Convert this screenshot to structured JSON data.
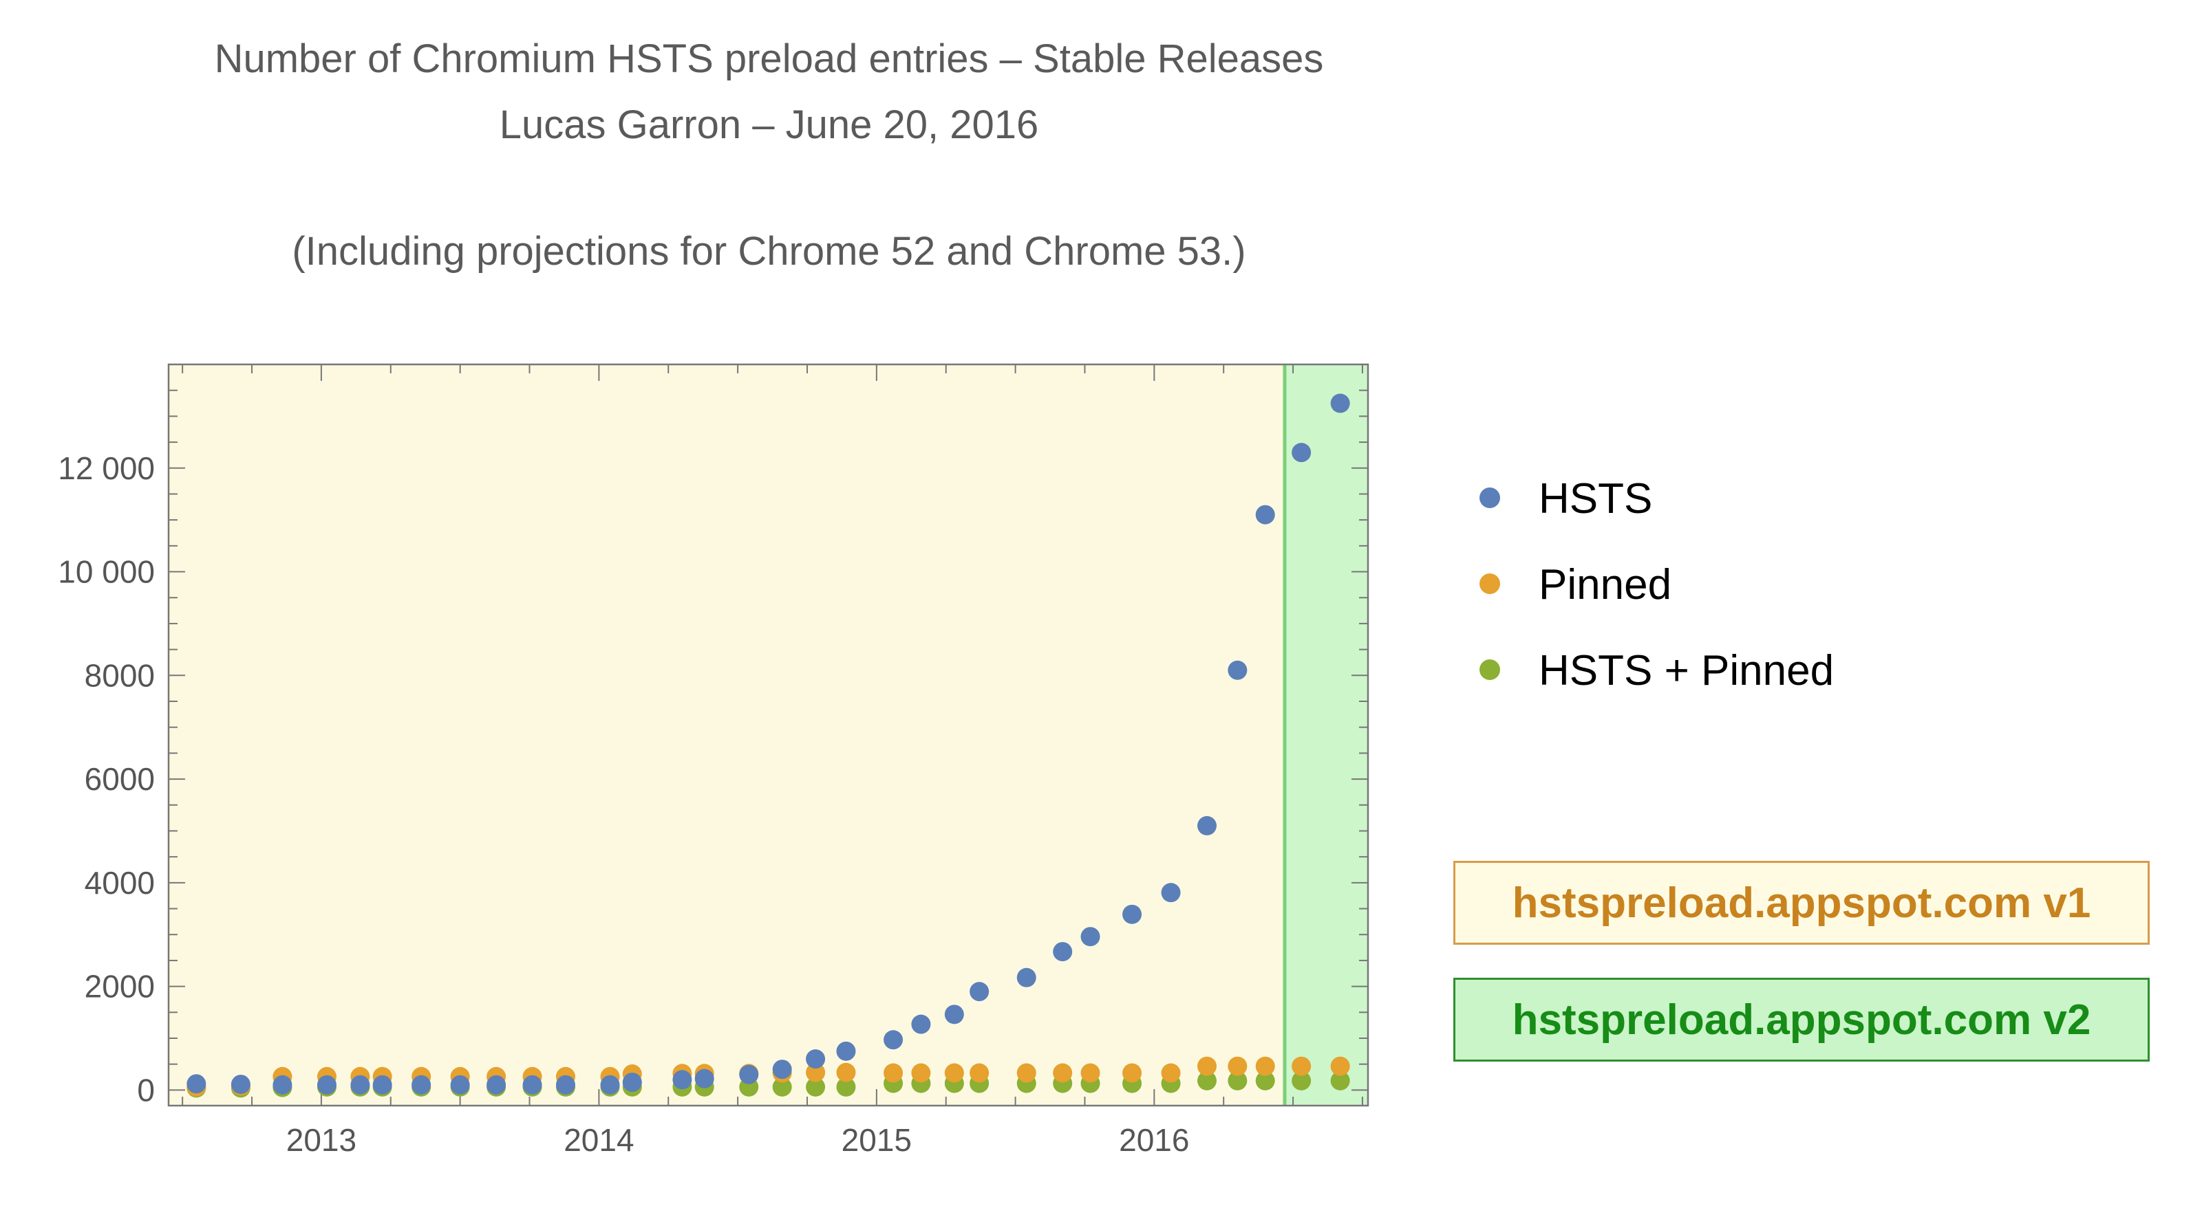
{
  "colors": {
    "hsts": "#5b7fb8",
    "pinned": "#e6a12e",
    "both": "#8bb033",
    "v1_background": "#fdf9e1",
    "v2_background": "#cdf6cb",
    "v2_boundary": "#7ccf7a",
    "v1_text": "#c8831f",
    "v1_border": "#d99a4a",
    "v1_fill": "#fffbe3",
    "v2_text": "#178c17",
    "v2_border": "#2f8f2f",
    "v2_fill": "#c9f5c8"
  },
  "chart_data": {
    "type": "scatter",
    "title": "Number of Chromium HSTS preload entries – Stable Releases",
    "subtitle": "Lucas Garron – June 20, 2016",
    "note": "(Including projections for Chrome 52 and Chrome 53.)",
    "xlabel": "",
    "ylabel": "",
    "xlim": [
      2012.45,
      2016.77
    ],
    "ylim": [
      -300,
      14000
    ],
    "x_ticks": [
      2013,
      2014,
      2015,
      2016
    ],
    "x_tick_labels": [
      "2013",
      "2014",
      "2015",
      "2016"
    ],
    "y_ticks": [
      0,
      2000,
      4000,
      6000,
      8000,
      10000,
      12000
    ],
    "y_tick_labels": [
      "0",
      "2000",
      "4000",
      "6000",
      "8000",
      "10 000",
      "12 000"
    ],
    "regions": [
      {
        "label": "hstspreload.appspot.com v1",
        "x_range": [
          2012.45,
          2016.47
        ]
      },
      {
        "label": "hstspreload.appspot.com v2",
        "x_range": [
          2016.47,
          2016.77
        ]
      }
    ],
    "grid": false,
    "legend_position": "right",
    "series": [
      {
        "name": "HSTS",
        "points": [
          [
            2012.55,
            120
          ],
          [
            2012.71,
            110
          ],
          [
            2012.86,
            100
          ],
          [
            2013.02,
            100
          ],
          [
            2013.14,
            100
          ],
          [
            2013.22,
            100
          ],
          [
            2013.36,
            100
          ],
          [
            2013.5,
            100
          ],
          [
            2013.63,
            100
          ],
          [
            2013.76,
            100
          ],
          [
            2013.88,
            100
          ],
          [
            2014.04,
            100
          ],
          [
            2014.12,
            150
          ],
          [
            2014.3,
            200
          ],
          [
            2014.38,
            220
          ],
          [
            2014.54,
            300
          ],
          [
            2014.66,
            400
          ],
          [
            2014.78,
            600
          ],
          [
            2014.89,
            750
          ],
          [
            2015.06,
            970
          ],
          [
            2015.16,
            1270
          ],
          [
            2015.28,
            1460
          ],
          [
            2015.37,
            1900
          ],
          [
            2015.54,
            2170
          ],
          [
            2015.67,
            2670
          ],
          [
            2015.77,
            2960
          ],
          [
            2015.92,
            3390
          ],
          [
            2016.06,
            3810
          ],
          [
            2016.19,
            5100
          ],
          [
            2016.3,
            8100
          ],
          [
            2016.4,
            11100
          ],
          [
            2016.53,
            12300
          ],
          [
            2016.67,
            13250
          ]
        ]
      },
      {
        "name": "Pinned",
        "points": [
          [
            2012.55,
            60
          ],
          [
            2012.71,
            80
          ],
          [
            2012.86,
            260
          ],
          [
            2013.02,
            260
          ],
          [
            2013.14,
            260
          ],
          [
            2013.22,
            260
          ],
          [
            2013.36,
            260
          ],
          [
            2013.5,
            260
          ],
          [
            2013.63,
            260
          ],
          [
            2013.76,
            260
          ],
          [
            2013.88,
            260
          ],
          [
            2014.04,
            260
          ],
          [
            2014.12,
            310
          ],
          [
            2014.3,
            320
          ],
          [
            2014.38,
            320
          ],
          [
            2014.54,
            320
          ],
          [
            2014.66,
            330
          ],
          [
            2014.78,
            340
          ],
          [
            2014.89,
            340
          ],
          [
            2015.06,
            330
          ],
          [
            2015.16,
            330
          ],
          [
            2015.28,
            330
          ],
          [
            2015.37,
            330
          ],
          [
            2015.54,
            330
          ],
          [
            2015.67,
            330
          ],
          [
            2015.77,
            330
          ],
          [
            2015.92,
            330
          ],
          [
            2016.06,
            330
          ],
          [
            2016.19,
            460
          ],
          [
            2016.3,
            460
          ],
          [
            2016.4,
            460
          ],
          [
            2016.53,
            460
          ],
          [
            2016.67,
            460
          ]
        ]
      },
      {
        "name": "HSTS + Pinned",
        "points": [
          [
            2012.55,
            40
          ],
          [
            2012.71,
            40
          ],
          [
            2012.86,
            50
          ],
          [
            2013.02,
            60
          ],
          [
            2013.14,
            60
          ],
          [
            2013.22,
            60
          ],
          [
            2013.36,
            60
          ],
          [
            2013.5,
            60
          ],
          [
            2013.63,
            60
          ],
          [
            2013.76,
            60
          ],
          [
            2013.88,
            60
          ],
          [
            2014.04,
            60
          ],
          [
            2014.12,
            60
          ],
          [
            2014.3,
            60
          ],
          [
            2014.38,
            60
          ],
          [
            2014.54,
            60
          ],
          [
            2014.66,
            60
          ],
          [
            2014.78,
            60
          ],
          [
            2014.89,
            60
          ],
          [
            2015.06,
            130
          ],
          [
            2015.16,
            130
          ],
          [
            2015.28,
            130
          ],
          [
            2015.37,
            130
          ],
          [
            2015.54,
            130
          ],
          [
            2015.67,
            130
          ],
          [
            2015.77,
            130
          ],
          [
            2015.92,
            130
          ],
          [
            2016.06,
            130
          ],
          [
            2016.19,
            180
          ],
          [
            2016.3,
            180
          ],
          [
            2016.4,
            180
          ],
          [
            2016.53,
            180
          ],
          [
            2016.67,
            180
          ]
        ]
      }
    ]
  }
}
